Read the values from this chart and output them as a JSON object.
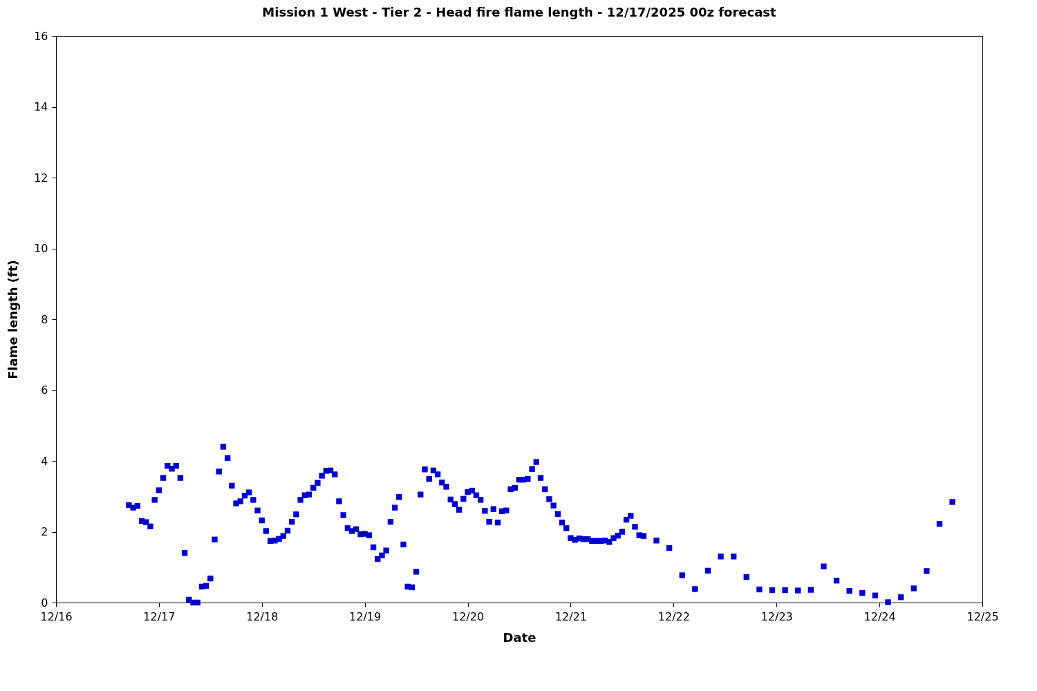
{
  "chart_data": {
    "type": "scatter",
    "title": "Mission 1 West - Tier 2 - Head fire flame length - 12/17/2025 00z forecast",
    "xlabel": "Date",
    "ylabel": "Flame length (ft)",
    "marker": "square",
    "grid": false,
    "legend": false,
    "xlim": [
      "2025-12-16",
      "2025-12-25"
    ],
    "xticks": [
      {
        "value": "2025-12-16",
        "label": "12/16"
      },
      {
        "value": "2025-12-17",
        "label": "12/17"
      },
      {
        "value": "2025-12-18",
        "label": "12/18"
      },
      {
        "value": "2025-12-19",
        "label": "12/19"
      },
      {
        "value": "2025-12-20",
        "label": "12/20"
      },
      {
        "value": "2025-12-21",
        "label": "12/21"
      },
      {
        "value": "2025-12-22",
        "label": "12/22"
      },
      {
        "value": "2025-12-23",
        "label": "12/23"
      },
      {
        "value": "2025-12-24",
        "label": "12/24"
      },
      {
        "value": "2025-12-25",
        "label": "12/25"
      }
    ],
    "ylim": [
      0,
      16
    ],
    "yticks": [
      0,
      2,
      4,
      6,
      8,
      10,
      12,
      14,
      16
    ],
    "series": [
      {
        "color": "#0000cc",
        "x": [
          "2025-12-16T17:00",
          "2025-12-16T18:00",
          "2025-12-16T19:00",
          "2025-12-16T20:00",
          "2025-12-16T21:00",
          "2025-12-16T22:00",
          "2025-12-16T23:00",
          "2025-12-17T00:00",
          "2025-12-17T01:00",
          "2025-12-17T02:00",
          "2025-12-17T03:00",
          "2025-12-17T04:00",
          "2025-12-17T05:00",
          "2025-12-17T06:00",
          "2025-12-17T07:00",
          "2025-12-17T08:00",
          "2025-12-17T09:00",
          "2025-12-17T10:00",
          "2025-12-17T11:00",
          "2025-12-17T12:00",
          "2025-12-17T13:00",
          "2025-12-17T14:00",
          "2025-12-17T15:00",
          "2025-12-17T16:00",
          "2025-12-17T17:00",
          "2025-12-17T18:00",
          "2025-12-17T19:00",
          "2025-12-17T20:00",
          "2025-12-17T21:00",
          "2025-12-17T22:00",
          "2025-12-17T23:00",
          "2025-12-18T00:00",
          "2025-12-18T01:00",
          "2025-12-18T02:00",
          "2025-12-18T03:00",
          "2025-12-18T04:00",
          "2025-12-18T05:00",
          "2025-12-18T06:00",
          "2025-12-18T07:00",
          "2025-12-18T08:00",
          "2025-12-18T09:00",
          "2025-12-18T10:00",
          "2025-12-18T11:00",
          "2025-12-18T12:00",
          "2025-12-18T13:00",
          "2025-12-18T14:00",
          "2025-12-18T15:00",
          "2025-12-18T16:00",
          "2025-12-18T17:00",
          "2025-12-18T18:00",
          "2025-12-18T19:00",
          "2025-12-18T20:00",
          "2025-12-18T21:00",
          "2025-12-18T22:00",
          "2025-12-18T23:00",
          "2025-12-19T00:00",
          "2025-12-19T01:00",
          "2025-12-19T02:00",
          "2025-12-19T03:00",
          "2025-12-19T04:00",
          "2025-12-19T05:00",
          "2025-12-19T06:00",
          "2025-12-19T07:00",
          "2025-12-19T08:00",
          "2025-12-19T09:00",
          "2025-12-19T10:00",
          "2025-12-19T11:00",
          "2025-12-19T12:00",
          "2025-12-19T13:00",
          "2025-12-19T14:00",
          "2025-12-19T15:00",
          "2025-12-19T16:00",
          "2025-12-19T17:00",
          "2025-12-19T18:00",
          "2025-12-19T19:00",
          "2025-12-19T20:00",
          "2025-12-19T21:00",
          "2025-12-19T22:00",
          "2025-12-19T23:00",
          "2025-12-20T00:00",
          "2025-12-20T01:00",
          "2025-12-20T02:00",
          "2025-12-20T03:00",
          "2025-12-20T04:00",
          "2025-12-20T05:00",
          "2025-12-20T06:00",
          "2025-12-20T07:00",
          "2025-12-20T08:00",
          "2025-12-20T09:00",
          "2025-12-20T10:00",
          "2025-12-20T11:00",
          "2025-12-20T12:00",
          "2025-12-20T13:00",
          "2025-12-20T14:00",
          "2025-12-20T15:00",
          "2025-12-20T16:00",
          "2025-12-20T17:00",
          "2025-12-20T18:00",
          "2025-12-20T19:00",
          "2025-12-20T20:00",
          "2025-12-20T21:00",
          "2025-12-20T22:00",
          "2025-12-20T23:00",
          "2025-12-21T00:00",
          "2025-12-21T01:00",
          "2025-12-21T02:00",
          "2025-12-21T03:00",
          "2025-12-21T04:00",
          "2025-12-21T05:00",
          "2025-12-21T06:00",
          "2025-12-21T07:00",
          "2025-12-21T08:00",
          "2025-12-21T09:00",
          "2025-12-21T10:00",
          "2025-12-21T11:00",
          "2025-12-21T12:00",
          "2025-12-21T13:00",
          "2025-12-21T14:00",
          "2025-12-21T15:00",
          "2025-12-21T16:00",
          "2025-12-21T17:00",
          "2025-12-21T20:00",
          "2025-12-21T23:00",
          "2025-12-22T02:00",
          "2025-12-22T05:00",
          "2025-12-22T08:00",
          "2025-12-22T11:00",
          "2025-12-22T14:00",
          "2025-12-22T17:00",
          "2025-12-22T20:00",
          "2025-12-22T23:00",
          "2025-12-23T02:00",
          "2025-12-23T05:00",
          "2025-12-23T08:00",
          "2025-12-23T11:00",
          "2025-12-23T14:00",
          "2025-12-23T17:00",
          "2025-12-23T20:00",
          "2025-12-23T23:00",
          "2025-12-24T02:00",
          "2025-12-24T05:00",
          "2025-12-24T08:00",
          "2025-12-24T11:00",
          "2025-12-24T14:00",
          "2025-12-24T17:00"
        ],
        "values": [
          2.75,
          2.68,
          2.73,
          2.3,
          2.27,
          2.15,
          2.9,
          3.17,
          3.52,
          3.86,
          3.78,
          3.86,
          3.52,
          1.4,
          0.08,
          0.0,
          0.0,
          0.45,
          0.47,
          0.68,
          1.78,
          3.7,
          4.4,
          4.08,
          3.3,
          2.8,
          2.86,
          3.02,
          3.11,
          2.9,
          2.6,
          2.32,
          2.02,
          1.74,
          1.75,
          1.8,
          1.88,
          2.03,
          2.28,
          2.49,
          2.9,
          3.03,
          3.05,
          3.24,
          3.38,
          3.58,
          3.72,
          3.73,
          3.62,
          2.86,
          2.47,
          2.1,
          2.02,
          2.07,
          1.93,
          1.94,
          1.9,
          1.56,
          1.23,
          1.33,
          1.47,
          2.28,
          2.68,
          2.98,
          1.64,
          0.45,
          0.43,
          0.87,
          3.05,
          3.76,
          3.49,
          3.73,
          3.62,
          3.39,
          3.27,
          2.91,
          2.78,
          2.62,
          2.93,
          3.12,
          3.16,
          3.03,
          2.9,
          2.59,
          2.28,
          2.64,
          2.26,
          2.58,
          2.6,
          3.2,
          3.24,
          3.47,
          3.47,
          3.49,
          3.77,
          3.97,
          3.52,
          3.2,
          2.92,
          2.74,
          2.5,
          2.26,
          2.1,
          1.82,
          1.77,
          1.81,
          1.79,
          1.79,
          1.74,
          1.74,
          1.74,
          1.75,
          1.71,
          1.82,
          1.89,
          2.0,
          2.34,
          2.45,
          2.14,
          1.9,
          1.88,
          1.75,
          1.54,
          0.77,
          0.38,
          0.9,
          1.3,
          1.3,
          0.72,
          0.37,
          0.35,
          0.35,
          0.34,
          0.36,
          1.02,
          0.62,
          0.33,
          0.27,
          0.2,
          0.01,
          0.15,
          0.4,
          0.89,
          2.22,
          2.84
        ]
      }
    ]
  }
}
